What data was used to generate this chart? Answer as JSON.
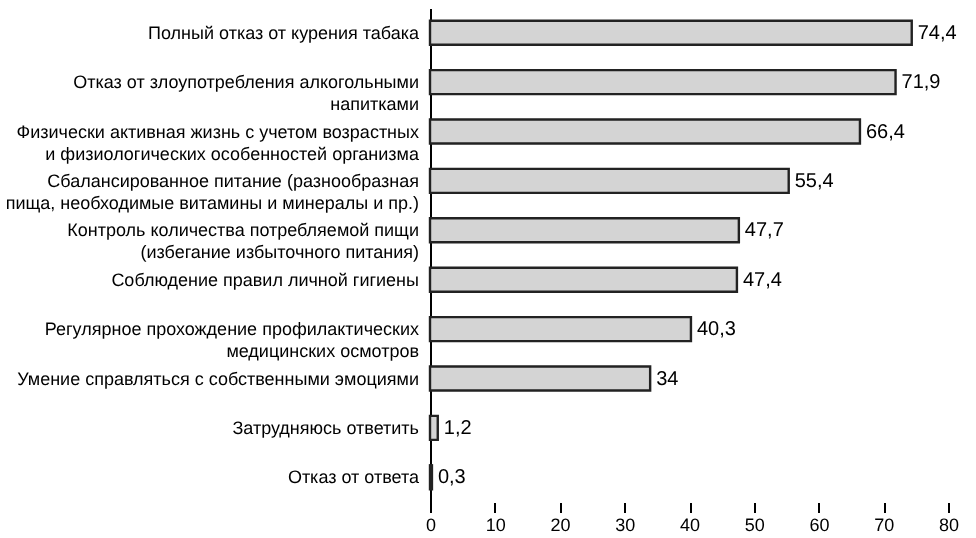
{
  "chart_data": {
    "type": "bar",
    "orientation": "horizontal",
    "categories": [
      "Полный отказ от курения табака",
      "Отказ от злоупотребления алкогольными\nнапитками",
      "Физически активная жизнь с учетом возрастных\nи физиологических особенностей организма",
      "Сбалансированное питание (разнообразная\nпища, необходимые витамины и минералы и пр.)",
      "Контроль количества потребляемой пищи\n(избегание избыточного питания)",
      "Соблюдение правил личной гигиены",
      "Регулярное прохождение профилактических\nмедицинских осмотров",
      "Умение справляться с собственными эмоциями",
      "Затрудняюсь ответить",
      "Отказ от ответа"
    ],
    "values": [
      74.4,
      71.9,
      66.4,
      55.4,
      47.7,
      47.4,
      40.3,
      34,
      1.2,
      0.3
    ],
    "value_labels": [
      "74,4",
      "71,9",
      "66,4",
      "55,4",
      "47,7",
      "47,4",
      "40,3",
      "34",
      "1,2",
      "0,3"
    ],
    "color": "#d4d4d4",
    "xlim": [
      0,
      80
    ],
    "xticks": [
      0,
      10,
      20,
      30,
      40,
      50,
      60,
      70,
      80
    ],
    "grid": false
  }
}
